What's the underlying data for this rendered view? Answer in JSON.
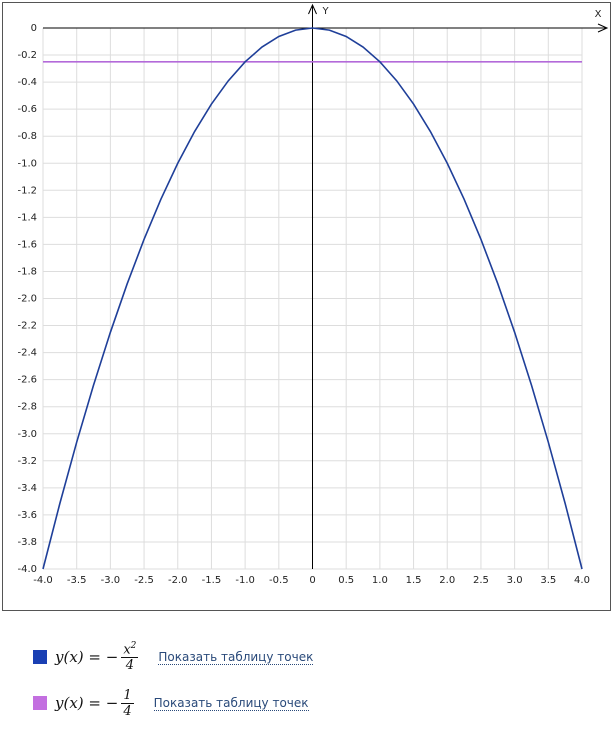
{
  "chart_data": {
    "type": "line",
    "xlabel": "X",
    "ylabel": "Y",
    "xlim": [
      -4,
      4
    ],
    "ylim": [
      -4,
      0
    ],
    "xticks": [
      {
        "value": -4,
        "label": "-4.0"
      },
      -3.5,
      {
        "value": -3,
        "label": "-3.0"
      },
      -2.5,
      {
        "value": -2,
        "label": "-2.0"
      },
      -1.5,
      {
        "value": -1,
        "label": "-1.0"
      },
      -0.5,
      0,
      0.5,
      {
        "value": 1,
        "label": "1.0"
      },
      1.5,
      {
        "value": 2,
        "label": "2.0"
      },
      2.5,
      {
        "value": 3,
        "label": "3.0"
      },
      3.5,
      {
        "value": 4,
        "label": "4.0"
      }
    ],
    "yticks": [
      0,
      -0.2,
      -0.4,
      -0.6,
      -0.8,
      {
        "value": -1,
        "label": "-1.0"
      },
      -1.2,
      -1.4,
      -1.6,
      -1.8,
      {
        "value": -2,
        "label": "-2.0"
      },
      -2.2,
      -2.4,
      -2.6,
      -2.8,
      {
        "value": -3,
        "label": "-3.0"
      },
      -3.2,
      -3.4,
      -3.6,
      -3.8,
      {
        "value": -4,
        "label": "-4.0"
      }
    ],
    "grid": true,
    "series": [
      {
        "color": "#1f3f99",
        "x": [
          -4,
          -3.75,
          -3.5,
          -3.25,
          -3,
          -2.75,
          -2.5,
          -2.25,
          -2,
          -1.75,
          -1.5,
          -1.25,
          -1,
          -0.75,
          -0.5,
          -0.25,
          0,
          0.25,
          0.5,
          0.75,
          1,
          1.25,
          1.5,
          1.75,
          2,
          2.25,
          2.5,
          2.75,
          3,
          3.25,
          3.5,
          3.75,
          4
        ],
        "values": [
          -4,
          -3.515625,
          -3.0625,
          -2.640625,
          -2.25,
          -1.890625,
          -1.5625,
          -1.265625,
          -1,
          -0.765625,
          -0.5625,
          -0.390625,
          -0.25,
          -0.140625,
          -0.0625,
          -0.015625,
          0,
          -0.015625,
          -0.0625,
          -0.140625,
          -0.25,
          -0.390625,
          -0.5625,
          -0.765625,
          -1,
          -1.265625,
          -1.5625,
          -1.890625,
          -2.25,
          -2.640625,
          -3.0625,
          -3.515625,
          -4
        ]
      },
      {
        "color": "#b36ad9",
        "x": [
          -4,
          4
        ],
        "values": [
          -0.25,
          -0.25
        ]
      }
    ]
  },
  "legend": [
    {
      "color": "#1a3fb3",
      "lhs": "y(x) = −",
      "numerator": "x",
      "exponent": "2",
      "denominator": "4",
      "link": "Показать таблицу точек"
    },
    {
      "color": "#c36fe0",
      "lhs": "y(x) = −",
      "numerator": "1",
      "denominator": "4",
      "link": "Показать таблицу точек"
    }
  ]
}
